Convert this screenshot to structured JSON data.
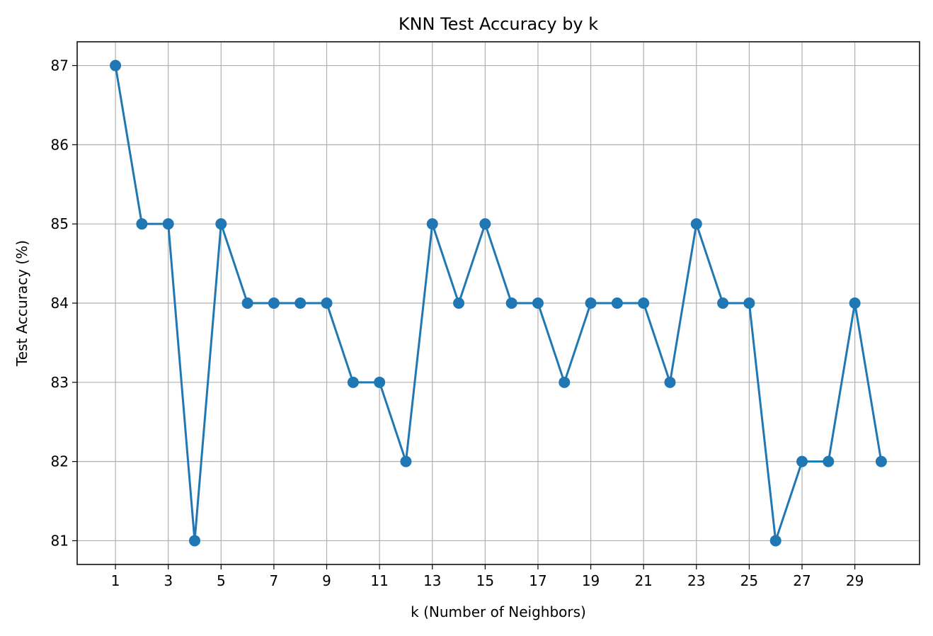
{
  "chart_data": {
    "type": "line",
    "title": "KNN Test Accuracy by k",
    "xlabel": "k (Number of Neighbors)",
    "ylabel": "Test Accuracy (%)",
    "x": [
      1,
      2,
      3,
      4,
      5,
      6,
      7,
      8,
      9,
      10,
      11,
      12,
      13,
      14,
      15,
      16,
      17,
      18,
      19,
      20,
      21,
      22,
      23,
      24,
      25,
      26,
      27,
      28,
      29,
      30
    ],
    "series": [
      {
        "values": [
          87,
          85,
          85,
          81,
          85,
          84,
          84,
          84,
          84,
          83,
          83,
          82,
          85,
          84,
          85,
          84,
          84,
          83,
          84,
          84,
          84,
          83,
          85,
          84,
          84,
          81,
          82,
          82,
          84,
          82
        ],
        "color": "#1f77b4",
        "marker": "circle"
      }
    ],
    "xticks": [
      "1",
      "3",
      "5",
      "7",
      "9",
      "11",
      "13",
      "15",
      "17",
      "19",
      "21",
      "23",
      "25",
      "27",
      "29"
    ],
    "yticks": [
      "81",
      "82",
      "83",
      "84",
      "85",
      "86",
      "87"
    ],
    "xlim": [
      -0.45,
      31.45
    ],
    "ylim": [
      80.7,
      87.3
    ],
    "grid": true,
    "grid_color": "#b0b0b0"
  }
}
